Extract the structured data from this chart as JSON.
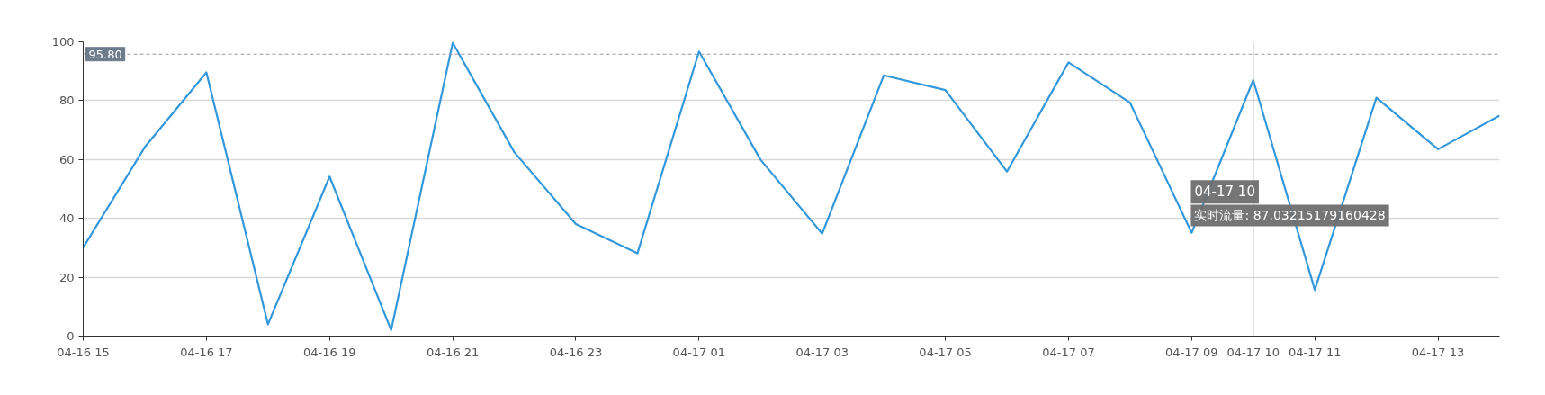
{
  "chart_data": {
    "type": "line",
    "categories": [
      "04-16 15",
      null,
      "04-16 17",
      null,
      "04-16 19",
      null,
      "04-16 21",
      null,
      "04-16 23",
      null,
      "04-17 01",
      null,
      "04-17 03",
      null,
      "04-17 05",
      null,
      "04-17 07",
      null,
      "04-17 09",
      "04-17 10",
      "04-17 11",
      null,
      "04-17 13",
      null
    ],
    "series": [
      {
        "color": "#3398db",
        "values": [
          30.1,
          64.2,
          89.6,
          4,
          54.2,
          2,
          99.7,
          62.5,
          38.1,
          28.1,
          96.7,
          59.9,
          34.8,
          88.6,
          83.6,
          55.9,
          93,
          79.3,
          35.1,
          87,
          15.7,
          81,
          63.5,
          74.9
        ]
      }
    ],
    "ylim": [
      0,
      100
    ],
    "yticks": [
      0,
      20,
      40,
      60,
      80,
      100
    ],
    "grid": "y",
    "marker": "none",
    "line_style": "solid",
    "ref_lines": [
      {
        "axis": "y",
        "value": 95.8,
        "label": "95.80",
        "color": "#999999",
        "line_style": "dashed"
      },
      {
        "axis": "x",
        "value": "04-17 10",
        "color": "#aaaaaa",
        "line_style": "solid"
      }
    ],
    "annotations": [
      "04-17 10",
      "实时流量: 87.03215179160428"
    ]
  }
}
